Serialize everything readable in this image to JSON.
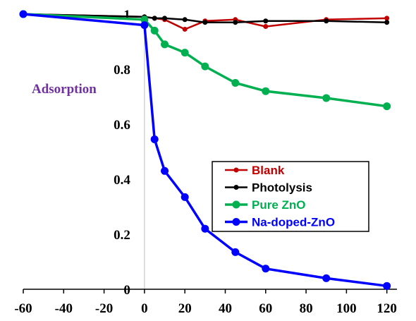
{
  "chart_data": {
    "type": "line",
    "title": "",
    "xlabel": "",
    "ylabel": "Adsorption",
    "xlim": [
      -60,
      125
    ],
    "ylim": [
      0,
      1
    ],
    "x_ticks": [
      -60,
      -40,
      -20,
      0,
      20,
      40,
      60,
      80,
      100,
      120
    ],
    "y_ticks": [
      0,
      0.2,
      0.4,
      0.6,
      0.8,
      1
    ],
    "grid": false,
    "legend_position": "center-right",
    "series": [
      {
        "name": "Blank",
        "color": "#C00000",
        "marker_size": "small",
        "x": [
          -60,
          0,
          5,
          10,
          20,
          30,
          45,
          60,
          90,
          120
        ],
        "y": [
          1.0,
          0.99,
          0.985,
          0.98,
          0.945,
          0.975,
          0.98,
          0.955,
          0.98,
          0.985
        ]
      },
      {
        "name": "Photolysis",
        "color": "#000000",
        "marker_size": "small",
        "x": [
          -60,
          0,
          5,
          10,
          20,
          30,
          45,
          60,
          90,
          120
        ],
        "y": [
          1.0,
          0.99,
          0.985,
          0.985,
          0.98,
          0.97,
          0.97,
          0.975,
          0.975,
          0.97
        ]
      },
      {
        "name": "Pure ZnO",
        "color": "#00B050",
        "marker_size": "large",
        "x": [
          -60,
          0,
          5,
          10,
          20,
          30,
          45,
          60,
          90,
          120
        ],
        "y": [
          1.0,
          0.98,
          0.94,
          0.89,
          0.86,
          0.81,
          0.75,
          0.72,
          0.695,
          0.665
        ]
      },
      {
        "name": "Na-doped-ZnO",
        "color": "#0000FF",
        "marker_size": "large",
        "x": [
          -60,
          0,
          5,
          10,
          20,
          30,
          45,
          60,
          90,
          120
        ],
        "y": [
          1.0,
          0.96,
          0.545,
          0.43,
          0.335,
          0.22,
          0.135,
          0.075,
          0.04,
          0.012
        ]
      }
    ]
  }
}
